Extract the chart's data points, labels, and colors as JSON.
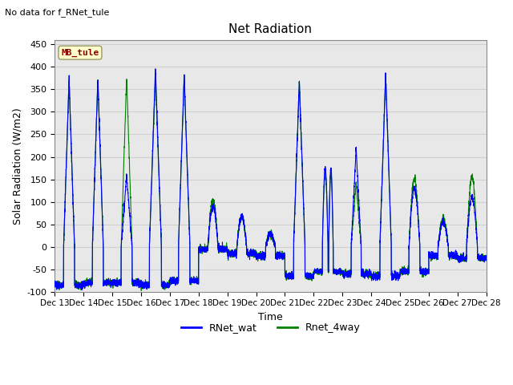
{
  "title": "Net Radiation",
  "subtitle": "No data for f_RNet_tule",
  "xlabel": "Time",
  "ylabel": "Solar Radiation (W/m2)",
  "ylim": [
    -100,
    460
  ],
  "yticks": [
    -100,
    -50,
    0,
    50,
    100,
    150,
    200,
    250,
    300,
    350,
    400,
    450
  ],
  "xtick_labels": [
    "Dec 13",
    "Dec 14",
    "Dec 15",
    "Dec 16",
    "Dec 17",
    "Dec 18",
    "Dec 19",
    "Dec 20",
    "Dec 21",
    "Dec 22",
    "Dec 23",
    "Dec 24",
    "Dec 25",
    "Dec 26",
    "Dec 27",
    "Dec 28"
  ],
  "annotation_text": "MB_tule",
  "annotation_color": "#8B0000",
  "annotation_bg": "#FFFFCC",
  "line_blue": "blue",
  "line_green": "green",
  "grid_color": "#d0d0d0",
  "bg_color": "#e8e8e8"
}
